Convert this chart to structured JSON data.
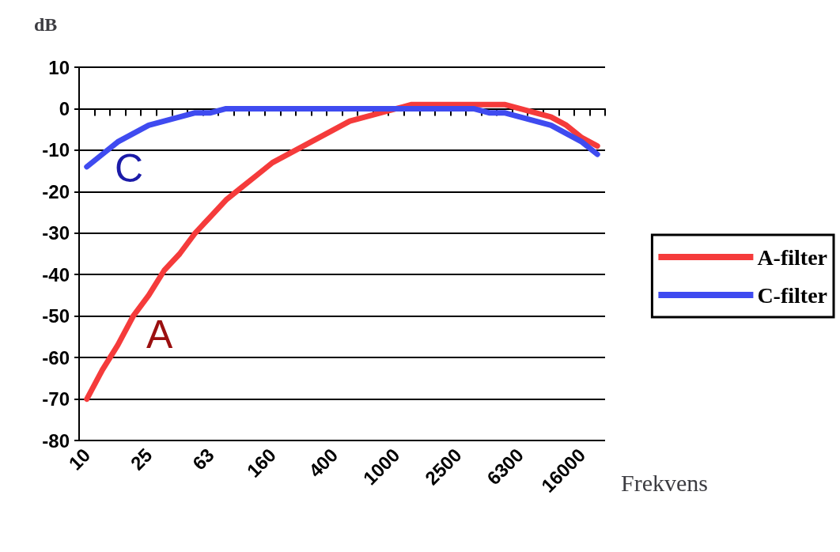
{
  "chart_data": {
    "type": "line",
    "ylabel": "dB",
    "xlabel": "Frekvens",
    "categories": [
      "10",
      null,
      null,
      null,
      "25",
      null,
      null,
      null,
      "63",
      null,
      null,
      null,
      "160",
      null,
      null,
      null,
      "400",
      null,
      null,
      null,
      "1000",
      null,
      null,
      null,
      "2500",
      null,
      null,
      null,
      "6300",
      null,
      null,
      null,
      "16000",
      null
    ],
    "series": [
      {
        "name": "A-filter",
        "color": "#f53b3b",
        "values": [
          -70,
          -63,
          -57,
          -50,
          -45,
          -39,
          -35,
          -30,
          -26,
          -22,
          -19,
          -16,
          -13,
          -11,
          -9,
          -7,
          -5,
          -3,
          -2,
          -1,
          0,
          1,
          1,
          1,
          1,
          1,
          1,
          1,
          0,
          -1,
          -2,
          -4,
          -7,
          -9
        ]
      },
      {
        "name": "C-filter",
        "color": "#3f4bf0",
        "values": [
          -14,
          -11,
          -8,
          -6,
          -4,
          -3,
          -2,
          -1,
          -1,
          0,
          0,
          0,
          0,
          0,
          0,
          0,
          0,
          0,
          0,
          0,
          0,
          0,
          0,
          0,
          0,
          0,
          -1,
          -1,
          -2,
          -3,
          -4,
          -6,
          -8,
          -11
        ]
      }
    ],
    "annotations": [
      "C",
      "A"
    ],
    "ylim": [
      -80,
      10
    ],
    "yticks": [
      -80,
      -70,
      -60,
      -50,
      -40,
      -30,
      -20,
      -10,
      0,
      10
    ],
    "grid": "y",
    "legend": "right",
    "marker": "none",
    "line_style": "solid"
  }
}
